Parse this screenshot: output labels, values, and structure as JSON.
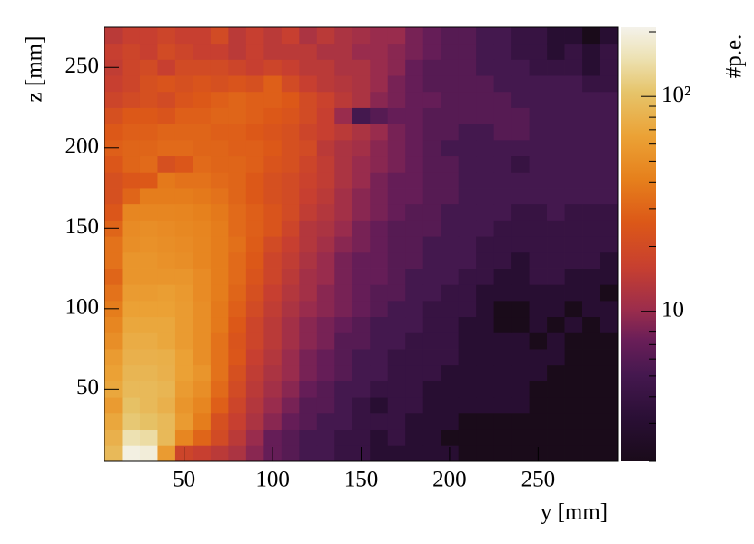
{
  "chart_data": {
    "type": "heatmap",
    "xlabel": "y [mm]",
    "ylabel": "z [mm]",
    "zlabel": "#p.e.",
    "x": [
      5,
      15,
      25,
      35,
      45,
      55,
      65,
      75,
      85,
      95,
      105,
      115,
      125,
      135,
      145,
      155,
      165,
      175,
      185,
      195,
      205,
      215,
      225,
      235,
      245,
      255,
      265,
      275,
      285,
      295
    ],
    "y": [
      5,
      15,
      25,
      35,
      45,
      55,
      65,
      75,
      85,
      95,
      105,
      115,
      125,
      135,
      145,
      155,
      165,
      175,
      185,
      195,
      205,
      215,
      225,
      235,
      245,
      255,
      265,
      275
    ],
    "xlim": [
      5,
      295
    ],
    "ylim": [
      5,
      275
    ],
    "xticks": [
      50,
      100,
      150,
      200,
      250
    ],
    "yticks": [
      50,
      100,
      150,
      200,
      250
    ],
    "zlim": [
      2,
      210
    ],
    "zlog": true,
    "zticks": [
      10,
      {
        "value": 100,
        "label": "10²"
      }
    ],
    "zminorticks": [
      2,
      3,
      4,
      5,
      6,
      7,
      8,
      9,
      20,
      30,
      40,
      50,
      60,
      70,
      80,
      90,
      200
    ],
    "values": [
      [
        90,
        200,
        190,
        60,
        18,
        16,
        14,
        12,
        9,
        7,
        6,
        5,
        5,
        4,
        4,
        3,
        3,
        3,
        3,
        3,
        2,
        2,
        2,
        2,
        2,
        2,
        2,
        2,
        2
      ],
      [
        80,
        150,
        140,
        90,
        45,
        30,
        20,
        14,
        10,
        7,
        6,
        5,
        5,
        4,
        4,
        3,
        4,
        3,
        3,
        2,
        2,
        2,
        2,
        2,
        2,
        2,
        2,
        2,
        2
      ],
      [
        70,
        110,
        100,
        90,
        60,
        40,
        22,
        16,
        12,
        9,
        7,
        6,
        5,
        5,
        4,
        4,
        4,
        3,
        3,
        3,
        2,
        2,
        2,
        2,
        2,
        2,
        2,
        2,
        2
      ],
      [
        60,
        100,
        90,
        80,
        55,
        45,
        28,
        18,
        13,
        10,
        8,
        6,
        6,
        5,
        4,
        3,
        4,
        4,
        3,
        3,
        3,
        3,
        3,
        3,
        2,
        2,
        2,
        2,
        2
      ],
      [
        70,
        90,
        90,
        85,
        60,
        50,
        32,
        20,
        14,
        11,
        9,
        7,
        6,
        5,
        5,
        4,
        4,
        4,
        3,
        3,
        3,
        3,
        3,
        3,
        2,
        2,
        2,
        2,
        2
      ],
      [
        65,
        85,
        85,
        80,
        65,
        55,
        35,
        22,
        15,
        12,
        10,
        8,
        7,
        6,
        5,
        5,
        4,
        4,
        4,
        3,
        3,
        3,
        3,
        3,
        3,
        2,
        2,
        2,
        2
      ],
      [
        60,
        80,
        80,
        78,
        65,
        50,
        35,
        25,
        16,
        13,
        10,
        8,
        7,
        6,
        5,
        5,
        4,
        4,
        4,
        4,
        3,
        3,
        3,
        3,
        3,
        3,
        2,
        2,
        2
      ],
      [
        50,
        75,
        75,
        70,
        60,
        50,
        35,
        24,
        18,
        14,
        11,
        9,
        8,
        6,
        6,
        5,
        5,
        4,
        4,
        4,
        3,
        3,
        3,
        3,
        2,
        3,
        2,
        2,
        2
      ],
      [
        45,
        70,
        70,
        70,
        60,
        50,
        38,
        26,
        18,
        14,
        11,
        9,
        8,
        7,
        6,
        5,
        5,
        5,
        4,
        4,
        3,
        3,
        2,
        2,
        3,
        2,
        3,
        2,
        3
      ],
      [
        40,
        65,
        65,
        65,
        60,
        50,
        38,
        28,
        20,
        15,
        12,
        10,
        9,
        8,
        7,
        6,
        5,
        5,
        4,
        4,
        4,
        3,
        2,
        2,
        3,
        3,
        2,
        3,
        3
      ],
      [
        35,
        60,
        60,
        62,
        58,
        48,
        40,
        30,
        22,
        16,
        13,
        11,
        9,
        8,
        7,
        6,
        6,
        5,
        5,
        4,
        4,
        3,
        3,
        3,
        3,
        3,
        3,
        3,
        2
      ],
      [
        30,
        55,
        55,
        55,
        55,
        48,
        40,
        32,
        24,
        18,
        14,
        11,
        10,
        8,
        7,
        7,
        6,
        5,
        5,
        5,
        4,
        4,
        3,
        3,
        4,
        4,
        3,
        3,
        3
      ],
      [
        35,
        55,
        55,
        52,
        50,
        45,
        40,
        32,
        26,
        18,
        15,
        12,
        10,
        8,
        7,
        7,
        6,
        6,
        5,
        5,
        5,
        4,
        4,
        3,
        4,
        4,
        4,
        4,
        3
      ],
      [
        35,
        50,
        52,
        50,
        48,
        45,
        40,
        34,
        27,
        20,
        16,
        13,
        11,
        9,
        8,
        7,
        6,
        6,
        5,
        5,
        5,
        4,
        4,
        4,
        4,
        4,
        4,
        4,
        4
      ],
      [
        30,
        48,
        50,
        48,
        46,
        44,
        40,
        32,
        28,
        24,
        18,
        13,
        12,
        10,
        8,
        7,
        6,
        6,
        6,
        5,
        5,
        5,
        4,
        4,
        4,
        4,
        4,
        4,
        4
      ],
      [
        25,
        45,
        45,
        45,
        44,
        42,
        38,
        32,
        28,
        24,
        20,
        15,
        13,
        11,
        9,
        8,
        7,
        6,
        6,
        5,
        5,
        5,
        5,
        4,
        4,
        5,
        4,
        4,
        4
      ],
      [
        22,
        30,
        40,
        40,
        40,
        38,
        35,
        30,
        26,
        22,
        20,
        16,
        14,
        11,
        9,
        8,
        7,
        7,
        6,
        6,
        5,
        5,
        5,
        5,
        5,
        5,
        5,
        5,
        5
      ],
      [
        22,
        25,
        26,
        38,
        35,
        35,
        32,
        30,
        26,
        22,
        20,
        17,
        15,
        12,
        10,
        8,
        7,
        7,
        6,
        6,
        5,
        5,
        5,
        5,
        5,
        5,
        5,
        5,
        5
      ],
      [
        25,
        30,
        32,
        22,
        25,
        32,
        30,
        30,
        28,
        24,
        22,
        18,
        15,
        12,
        10,
        9,
        8,
        7,
        6,
        6,
        5,
        5,
        5,
        4,
        5,
        5,
        5,
        5,
        5
      ],
      [
        28,
        30,
        30,
        32,
        32,
        30,
        30,
        28,
        28,
        26,
        22,
        20,
        14,
        12,
        11,
        9,
        8,
        7,
        6,
        5,
        5,
        5,
        5,
        5,
        5,
        5,
        5,
        5,
        5
      ],
      [
        26,
        28,
        28,
        30,
        30,
        30,
        28,
        28,
        26,
        24,
        22,
        18,
        16,
        14,
        12,
        10,
        8,
        7,
        6,
        6,
        5,
        5,
        6,
        6,
        5,
        5,
        5,
        5,
        5
      ],
      [
        22,
        26,
        26,
        24,
        28,
        28,
        30,
        30,
        28,
        26,
        24,
        20,
        16,
        10,
        5,
        6,
        7,
        7,
        6,
        6,
        6,
        6,
        6,
        6,
        5,
        5,
        5,
        5,
        5
      ],
      [
        18,
        20,
        22,
        20,
        24,
        26,
        28,
        30,
        28,
        28,
        26,
        20,
        17,
        14,
        12,
        9,
        8,
        7,
        7,
        6,
        6,
        6,
        6,
        5,
        5,
        5,
        5,
        5,
        5
      ],
      [
        16,
        18,
        22,
        24,
        22,
        24,
        22,
        24,
        22,
        28,
        20,
        16,
        14,
        13,
        12,
        10,
        8,
        7,
        6,
        6,
        6,
        6,
        5,
        5,
        5,
        5,
        5,
        4,
        4
      ],
      [
        15,
        18,
        20,
        16,
        20,
        20,
        20,
        18,
        16,
        18,
        16,
        14,
        14,
        12,
        12,
        10,
        9,
        7,
        6,
        6,
        6,
        5,
        5,
        5,
        4,
        4,
        4,
        3,
        4
      ],
      [
        16,
        18,
        16,
        20,
        18,
        16,
        16,
        14,
        16,
        14,
        14,
        14,
        12,
        12,
        10,
        10,
        9,
        8,
        7,
        6,
        6,
        5,
        5,
        4,
        4,
        3,
        4,
        3,
        4
      ],
      [
        14,
        16,
        16,
        18,
        16,
        16,
        20,
        14,
        16,
        14,
        16,
        12,
        14,
        12,
        11,
        10,
        10,
        8,
        7,
        6,
        6,
        5,
        5,
        4,
        4,
        3,
        3,
        2,
        3
      ]
    ]
  }
}
